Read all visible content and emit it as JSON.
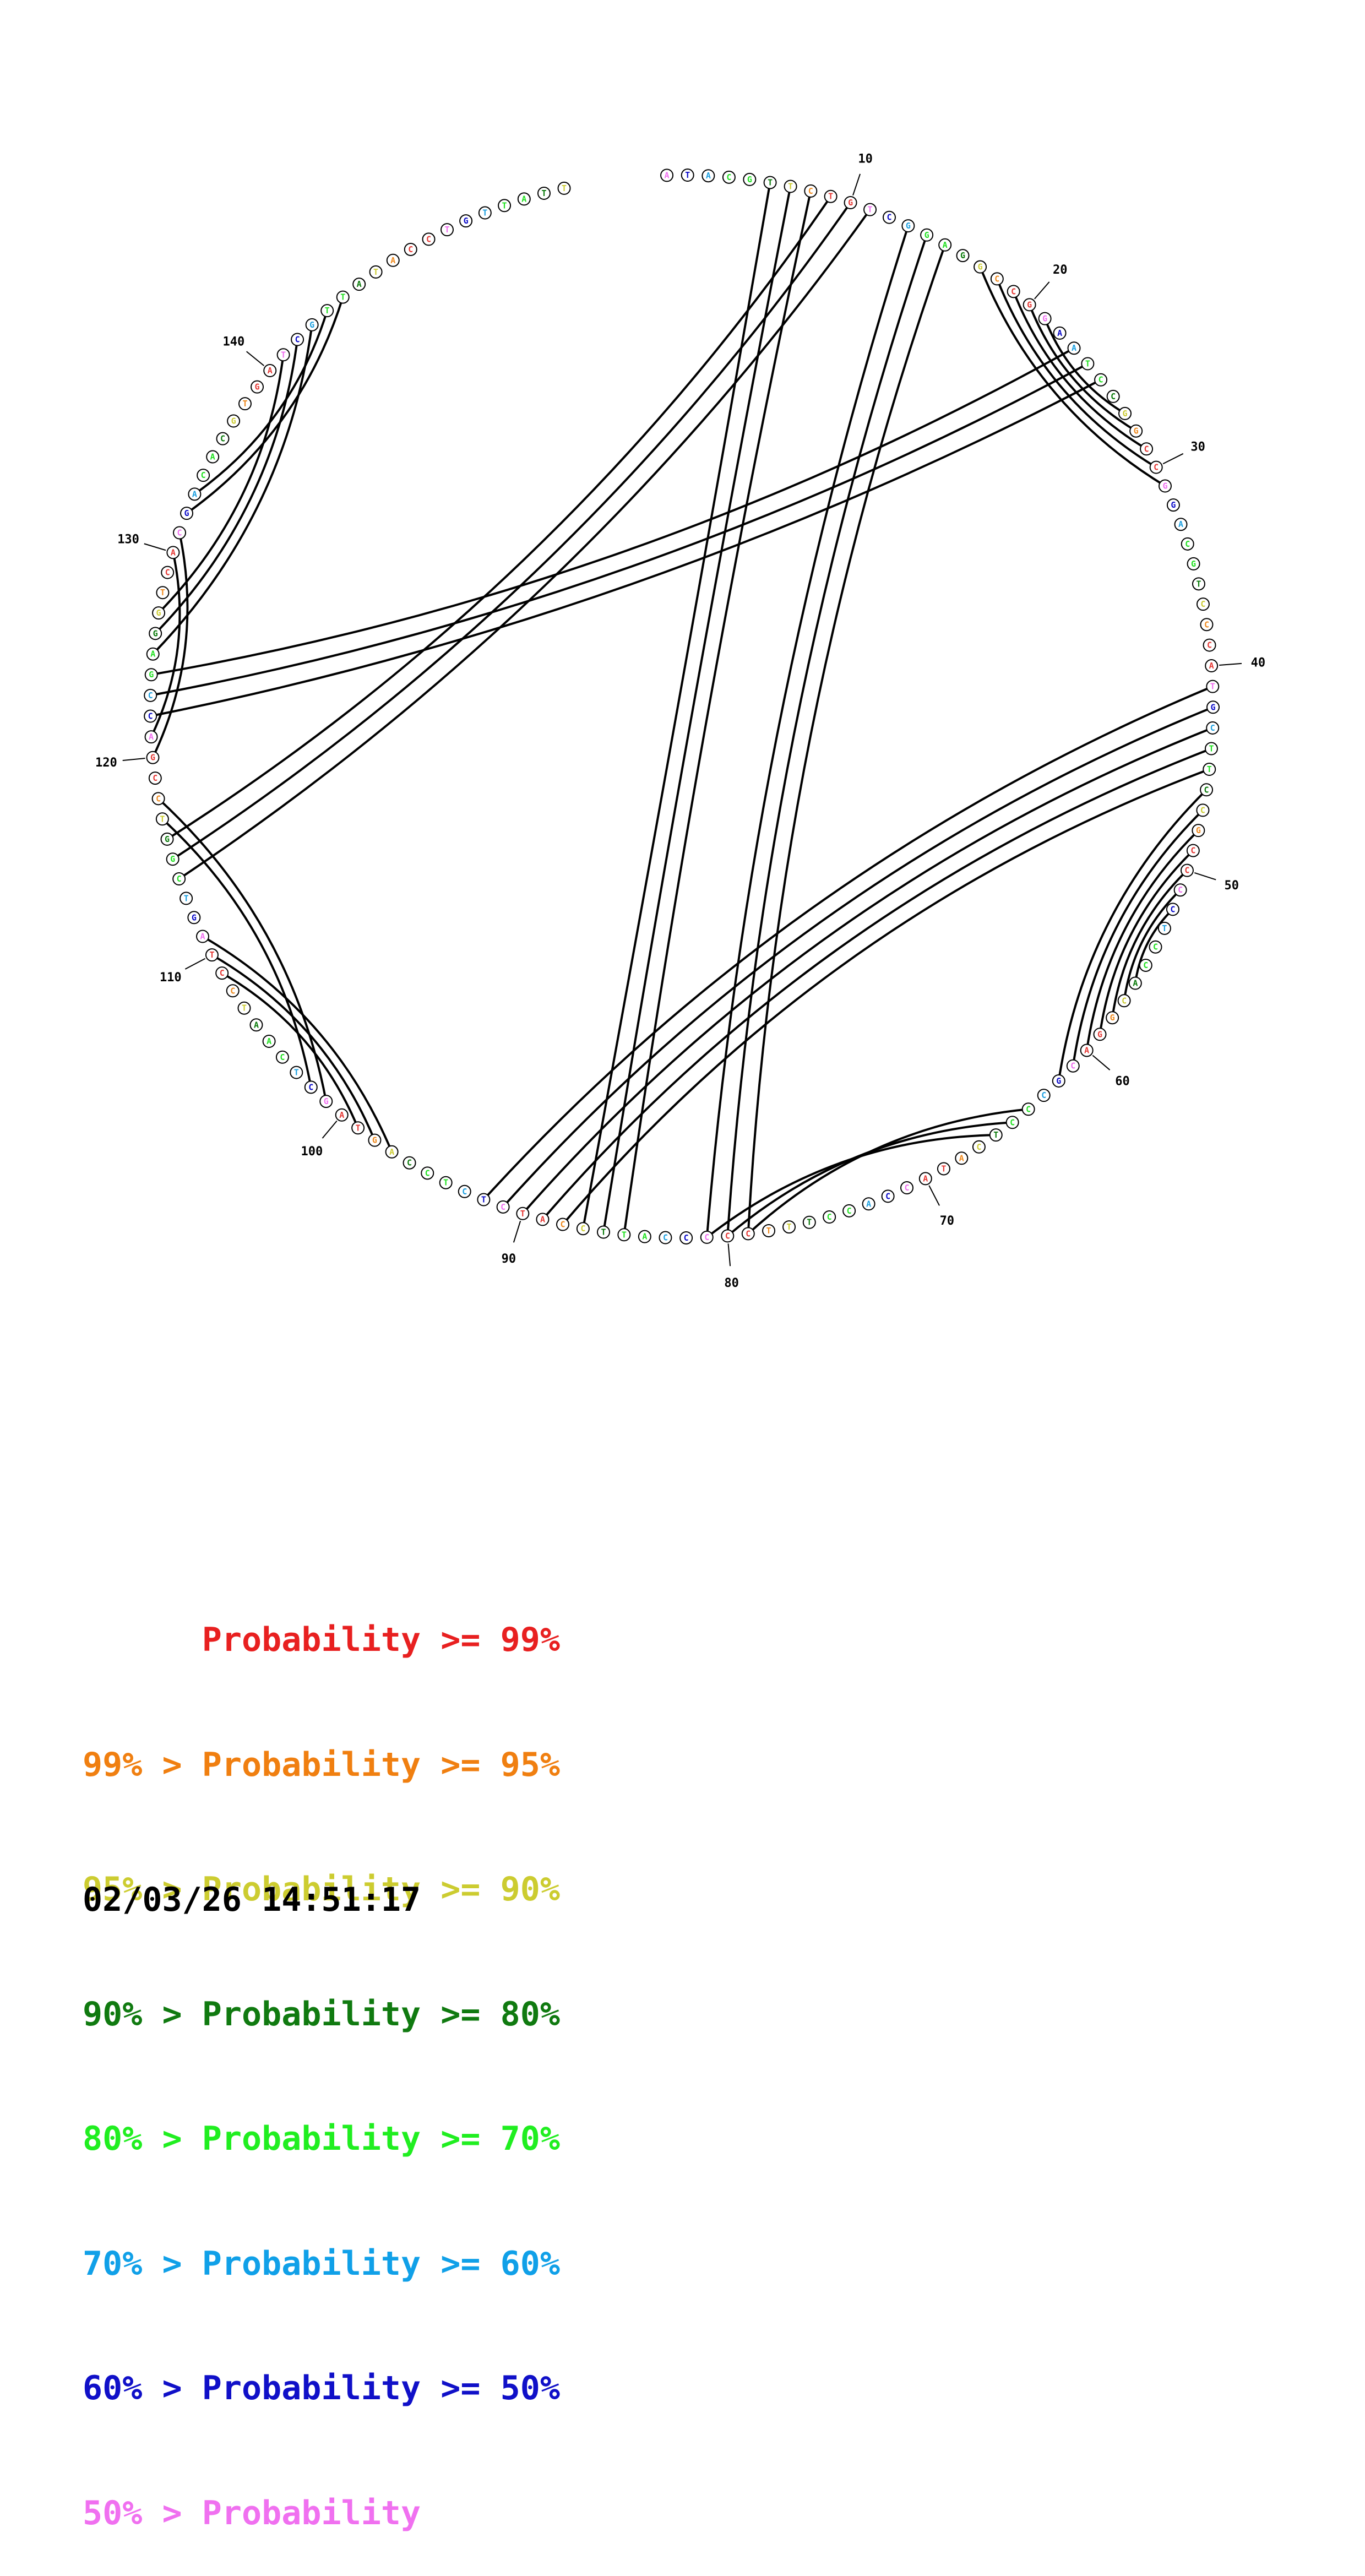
{
  "sequence": "ATACGTTCTGTCGGAGGCCGGAATCCGGCCGGACGTCCCATGCTTCCGCCCCTCCACGGACGCCCTCATACCACCTTTCCCCCATTCCATCTCTCCAGTAGCTCAATCCTAGTCGGTCCGACCGAGGTCACGACACGTGATCGTTATACCTGTTATT",
  "pairs": [
    [
      6,
      87
    ],
    [
      7,
      86
    ],
    [
      8,
      85
    ],
    [
      9,
      116
    ],
    [
      10,
      115
    ],
    [
      11,
      114
    ],
    [
      13,
      81
    ],
    [
      14,
      80
    ],
    [
      15,
      79
    ],
    [
      17,
      31
    ],
    [
      18,
      30
    ],
    [
      19,
      29
    ],
    [
      20,
      28
    ],
    [
      21,
      27
    ],
    [
      23,
      124
    ],
    [
      24,
      123
    ],
    [
      25,
      122
    ],
    [
      41,
      92
    ],
    [
      42,
      91
    ],
    [
      43,
      90
    ],
    [
      44,
      89
    ],
    [
      45,
      88
    ],
    [
      46,
      62
    ],
    [
      47,
      61
    ],
    [
      48,
      60
    ],
    [
      49,
      59
    ],
    [
      50,
      58
    ],
    [
      51,
      57
    ],
    [
      52,
      56
    ],
    [
      64,
      79
    ],
    [
      65,
      80
    ],
    [
      66,
      81
    ],
    [
      97,
      111
    ],
    [
      98,
      110
    ],
    [
      99,
      109
    ],
    [
      101,
      118
    ],
    [
      102,
      117
    ],
    [
      120,
      131
    ],
    [
      121,
      130
    ],
    [
      125,
      143
    ],
    [
      126,
      142
    ],
    [
      127,
      141
    ],
    [
      132,
      145
    ],
    [
      133,
      144
    ]
  ],
  "base_colors": {
    "A": "#e53935",
    "B": "#ef8a1f",
    "C": "#cccc33",
    "D": "#0a7a0a",
    "E": "#22e022",
    "F": "#1ea0e0",
    "G": "#0a0ac8",
    "H": "#f070f0"
  },
  "position_labels": [
    10,
    20,
    30,
    40,
    50,
    60,
    70,
    80,
    90,
    100,
    110,
    120,
    130,
    140
  ],
  "legend": [
    {
      "text": "      Probability >= 99%",
      "color": "#e82020"
    },
    {
      "text": "99% > Probability >= 95%",
      "color": "#f07f10"
    },
    {
      "text": "95% > Probability >= 90%",
      "color": "#cccc30"
    },
    {
      "text": "90% > Probability >= 80%",
      "color": "#107a10"
    },
    {
      "text": "80% > Probability >= 70%",
      "color": "#20ee20"
    },
    {
      "text": "70% > Probability >= 60%",
      "color": "#10a0e8"
    },
    {
      "text": "60% > Probability >= 50%",
      "color": "#1010c8"
    },
    {
      "text": "50% > Probability",
      "color": "#f070f0"
    }
  ],
  "timestamp": "02/03/26 14:51:17"
}
